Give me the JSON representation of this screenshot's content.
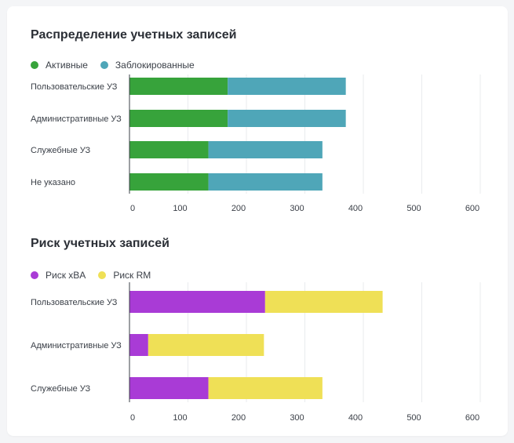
{
  "chart_data": [
    {
      "type": "bar",
      "orientation": "horizontal",
      "stacked": true,
      "title": "Распределение учетных записей",
      "categories": [
        "Пользовательские УЗ",
        "Административные УЗ",
        "Служебные УЗ",
        "Не указано"
      ],
      "series": [
        {
          "name": "Активные",
          "color": "#37a33b",
          "values": [
            168,
            168,
            135,
            135
          ]
        },
        {
          "name": "Заблокированные",
          "color": "#4fa6b8",
          "values": [
            202,
            202,
            195,
            195
          ]
        }
      ],
      "xlim": [
        0,
        600
      ],
      "xticks": [
        0,
        100,
        200,
        300,
        400,
        500,
        600
      ],
      "grid": true,
      "legend": "top-left"
    },
    {
      "type": "bar",
      "orientation": "horizontal",
      "stacked": true,
      "title": "Риск учетных записей",
      "categories": [
        "Пользовательские УЗ",
        "Административные УЗ",
        "Служебные УЗ"
      ],
      "series": [
        {
          "name": "Риск xBA",
          "color": "#a93bd6",
          "values": [
            232,
            32,
            135
          ]
        },
        {
          "name": "Риск RM",
          "color": "#efe056",
          "values": [
            201,
            198,
            195
          ]
        }
      ],
      "xlim": [
        0,
        600
      ],
      "xticks": [
        0,
        100,
        200,
        300,
        400,
        500,
        600
      ],
      "grid": true,
      "legend": "top-left"
    }
  ]
}
